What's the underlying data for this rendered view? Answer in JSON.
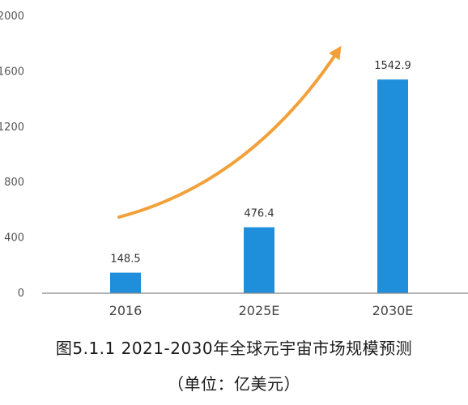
{
  "chart_data": {
    "type": "bar",
    "categories": [
      "2016",
      "2025E",
      "2030E"
    ],
    "values": [
      148.5,
      476.4,
      1542.9
    ],
    "value_labels": [
      "148.5",
      "476.4",
      "1542.9"
    ],
    "ylim": [
      0,
      2000
    ],
    "yticks": [
      "0",
      "400",
      "800",
      "1200",
      "1600",
      "2000"
    ],
    "ytick_values": [
      0,
      400,
      800,
      1200,
      1600,
      2000
    ],
    "grid": false,
    "title": "图5.1.1    2021-2030年全球元宇宙市场规模预测",
    "subtitle": "（单位：亿美元）",
    "annotation": "upward growth arrow",
    "colors": {
      "bar": "#1f8fdb",
      "arrow": "#f2a13a",
      "axis": "#888888"
    }
  }
}
